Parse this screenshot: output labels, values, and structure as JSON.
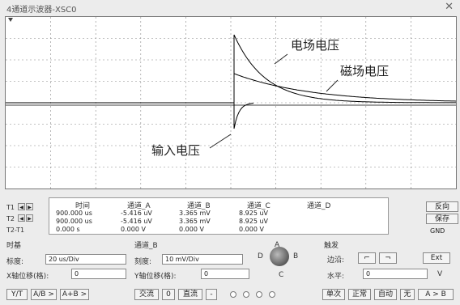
{
  "window": {
    "title": "4通道示波器-XSC0"
  },
  "screen": {
    "annotations": {
      "electric": "电场电压",
      "magnetic": "磁场电压",
      "input": "输入电压"
    },
    "colors": {
      "grid": "#888888",
      "trace": "#000000",
      "background": "#ffffff"
    }
  },
  "readout": {
    "columns": [
      "时间",
      "通道_A",
      "通道_B",
      "通道_C",
      "通道_D"
    ],
    "rows": [
      {
        "label": "T1",
        "time": "900.000 us",
        "a": "-5.416 uV",
        "b": "3.365 mV",
        "c": "8.925 uV",
        "d": ""
      },
      {
        "label": "T2",
        "time": "900.000 us",
        "a": "-5.416 uV",
        "b": "3.365 mV",
        "c": "8.925 uV",
        "d": ""
      },
      {
        "label": "T2-T1",
        "time": "0.000 s",
        "a": "0.000 V",
        "b": "0.000 V",
        "c": "0.000 V",
        "d": ""
      }
    ],
    "reverse_label": "反向",
    "save_label": "保存",
    "gnd_label": "GND"
  },
  "timebase": {
    "section": "时基",
    "scale_label": "标度:",
    "scale_value": "20 us/Div",
    "xpos_label": "X轴位移(格):",
    "xpos_value": "0",
    "mode_yt": "Y/T",
    "mode_ab": "A/B >",
    "mode_apb": "A+B >"
  },
  "channel": {
    "section": "通道_B",
    "scale_label": "刻度:",
    "scale_value": "10 mV/Div",
    "ypos_label": "Y轴位移(格):",
    "ypos_value": "0",
    "ac_label": "交流",
    "zero_label": "0",
    "dc_label": "直流",
    "minus_label": "-",
    "knob_labels": {
      "a": "A",
      "b": "B",
      "c": "C",
      "d": "D"
    }
  },
  "trigger": {
    "section": "触发",
    "edge_label": "边沿:",
    "level_label": "水平:",
    "level_value": "0",
    "level_unit": "V",
    "ext_label": "Ext",
    "single_label": "单次",
    "normal_label": "正常",
    "auto_label": "自动",
    "none_label": "无",
    "src_ab_label": "A > B"
  }
}
